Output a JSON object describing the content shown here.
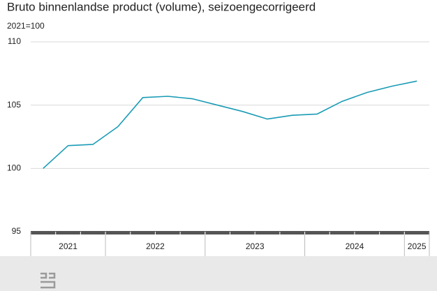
{
  "chart_data": {
    "type": "line",
    "title": "Bruto binnenlandse product (volume), seizoengecorrigeerd",
    "subtitle": "2021=100",
    "categories": [
      "2021",
      "2021",
      "2021",
      "2022",
      "2022",
      "2022",
      "2022",
      "2023",
      "2023",
      "2023",
      "2023",
      "2024",
      "2024",
      "2024",
      "2024",
      "2025"
    ],
    "values": [
      100.0,
      101.8,
      101.9,
      103.3,
      105.6,
      105.7,
      105.5,
      105.0,
      104.5,
      103.9,
      104.2,
      104.3,
      105.3,
      106.0,
      106.5,
      106.9
    ],
    "color": "#1a9bb5",
    "ylim": [
      95,
      110
    ],
    "yticks": [
      95,
      100,
      105,
      110
    ],
    "grid": true
  }
}
